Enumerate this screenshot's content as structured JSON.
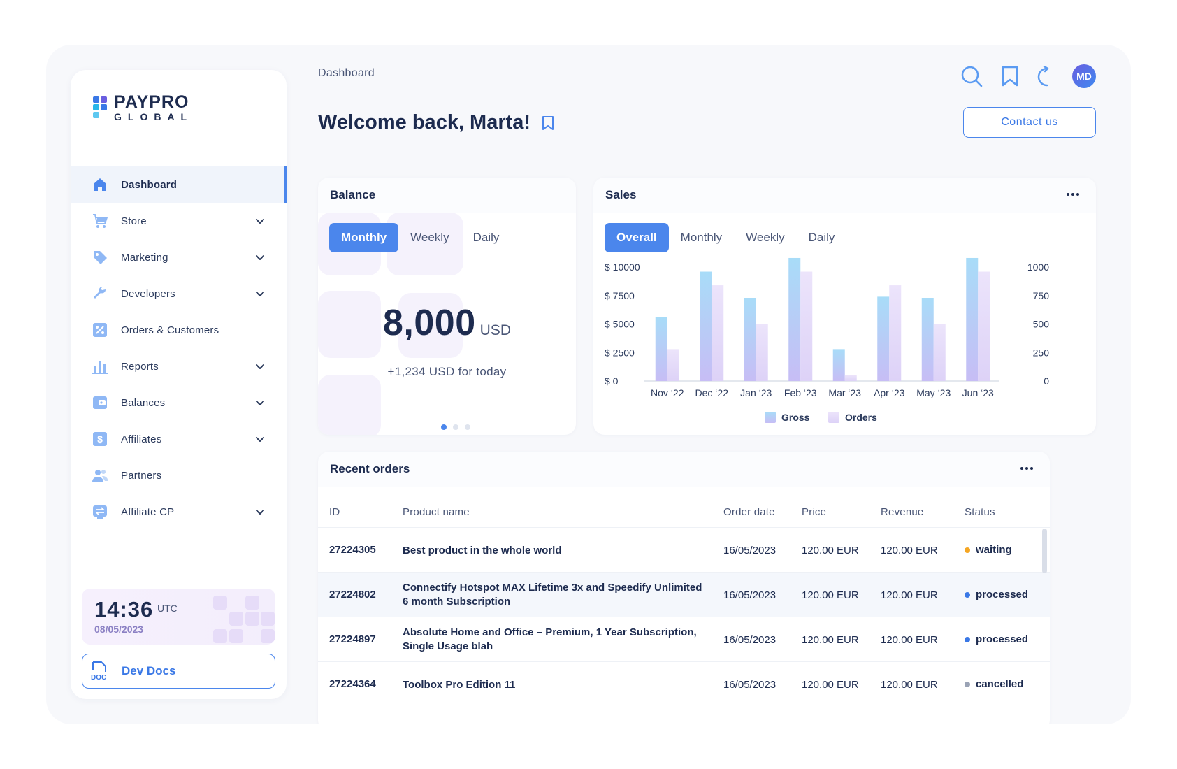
{
  "app": {
    "logo_top": "PAYPRO",
    "logo_bottom": "GLOBAL"
  },
  "sidebar": {
    "items": [
      {
        "label": "Dashboard",
        "icon": "home-icon",
        "active": true,
        "expandable": false
      },
      {
        "label": "Store",
        "icon": "cart-icon",
        "active": false,
        "expandable": true
      },
      {
        "label": "Marketing",
        "icon": "tag-icon",
        "active": false,
        "expandable": true
      },
      {
        "label": "Developers",
        "icon": "wrench-icon",
        "active": false,
        "expandable": true
      },
      {
        "label": "Orders & Customers",
        "icon": "percent-icon",
        "active": false,
        "expandable": false
      },
      {
        "label": "Reports",
        "icon": "bar-chart-icon",
        "active": false,
        "expandable": true
      },
      {
        "label": "Balances",
        "icon": "wallet-icon",
        "active": false,
        "expandable": true
      },
      {
        "label": "Affiliates",
        "icon": "dollar-icon",
        "active": false,
        "expandable": true
      },
      {
        "label": "Partners",
        "icon": "users-icon",
        "active": false,
        "expandable": false
      },
      {
        "label": "Affiliate CP",
        "icon": "transfer-icon",
        "active": false,
        "expandable": true
      }
    ],
    "clock": {
      "time": "14:36",
      "zone": "UTC",
      "date": "08/05/2023"
    },
    "devdocs": {
      "label": "Dev Docs",
      "icon_text": "DOC"
    }
  },
  "header": {
    "breadcrumb": "Dashboard",
    "welcome": "Welcome back, Marta!",
    "contact_label": "Contact us",
    "avatar_initials": "MD",
    "icons": [
      "search-icon",
      "bookmark-icon",
      "refresh-icon"
    ]
  },
  "balance": {
    "title": "Balance",
    "tabs": [
      "Monthly",
      "Weekly",
      "Daily"
    ],
    "active_tab": 0,
    "amount": "8,000",
    "currency": "USD",
    "today": "+1,234 USD for today",
    "page": 0,
    "pages": 3
  },
  "sales": {
    "title": "Sales",
    "tabs": [
      "Overall",
      "Monthly",
      "Weekly",
      "Daily"
    ],
    "active_tab": 0
  },
  "chart_data": {
    "type": "bar",
    "categories": [
      "Nov ‘22",
      "Dec ‘22",
      "Jan ‘23",
      "Feb ‘23",
      "Mar ‘23",
      "Apr ‘23",
      "May ‘23",
      "Jun ‘23"
    ],
    "series": [
      {
        "name": "Gross",
        "axis": "left",
        "values": [
          5600,
          9600,
          7300,
          10800,
          2800,
          7400,
          7300,
          10800
        ]
      },
      {
        "name": "Orders",
        "axis": "right",
        "values": [
          280,
          840,
          500,
          960,
          50,
          840,
          500,
          960
        ]
      }
    ],
    "y_left_ticks": [
      "$ 0",
      "$ 2500",
      "$ 5000",
      "$ 7500",
      "$ 10000"
    ],
    "y_right_ticks": [
      "0",
      "250",
      "500",
      "750",
      "1000"
    ],
    "ylim_left": [
      0,
      10000
    ],
    "ylim_right": [
      0,
      1000
    ],
    "legend_position": "bottom",
    "colors": {
      "Gross": "#a6d6f7",
      "Orders": "#e8defa"
    }
  },
  "orders": {
    "title": "Recent orders",
    "columns": [
      "ID",
      "Product name",
      "Order date",
      "Price",
      "Revenue",
      "Status"
    ],
    "rows": [
      {
        "id": "27224305",
        "product": "Best product in the whole world",
        "date": "16/05/2023",
        "price": "120.00 EUR",
        "revenue": "120.00 EUR",
        "status": "waiting",
        "status_color": "#f5a623"
      },
      {
        "id": "27224802",
        "product": "Connectify Hotspot MAX Lifetime 3x and Speedify Unlimited 6 month Subscription",
        "date": "16/05/2023",
        "price": "120.00 EUR",
        "revenue": "120.00 EUR",
        "status": "processed",
        "status_color": "#3a78e6"
      },
      {
        "id": "27224897",
        "product": "Absolute Home and Office – Premium, 1 Year Subscription, Single Usage blah",
        "date": "16/05/2023",
        "price": "120.00 EUR",
        "revenue": "120.00 EUR",
        "status": "processed",
        "status_color": "#3a78e6"
      },
      {
        "id": "27224364",
        "product": "Toolbox Pro Edition 11",
        "date": "16/05/2023",
        "price": "120.00 EUR",
        "revenue": "120.00 EUR",
        "status": "cancelled",
        "status_color": "#9aa3b5"
      }
    ]
  }
}
